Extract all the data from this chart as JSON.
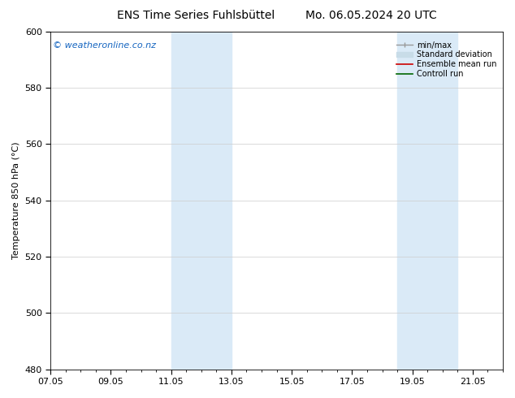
{
  "title_left": "ENS Time Series Fuhlsbüttel",
  "title_right": "Mo. 06.05.2024 20 UTC",
  "ylabel": "Temperature 850 hPa (°C)",
  "watermark": "© weatheronline.co.nz",
  "watermark_color": "#1565C0",
  "xlim_start": 0,
  "xlim_end": 15,
  "ylim_bottom": 480,
  "ylim_top": 600,
  "yticks": [
    480,
    500,
    520,
    540,
    560,
    580,
    600
  ],
  "xtick_labels": [
    "07.05",
    "09.05",
    "11.05",
    "13.05",
    "15.05",
    "17.05",
    "19.05",
    "21.05"
  ],
  "xtick_positions": [
    0,
    2,
    4,
    6,
    8,
    10,
    12,
    14
  ],
  "bg_color": "#ffffff",
  "plot_bg_color": "#ffffff",
  "shaded_bands": [
    {
      "x_start": 4.0,
      "x_end": 6.0,
      "color": "#daeaf7"
    },
    {
      "x_start": 11.5,
      "x_end": 13.5,
      "color": "#daeaf7"
    }
  ],
  "font_size_title": 10,
  "font_size_axis": 8,
  "font_size_legend": 7,
  "font_size_watermark": 8,
  "grid_color": "#cccccc",
  "axis_color": "#000000"
}
